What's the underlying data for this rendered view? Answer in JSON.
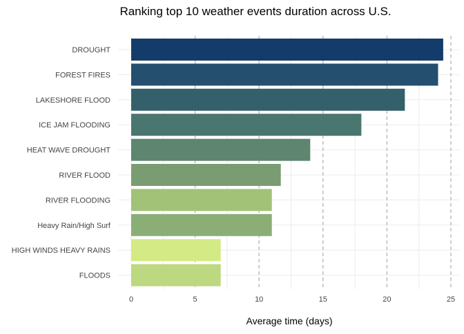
{
  "chart_data": {
    "type": "bar",
    "orientation": "horizontal",
    "title": "Ranking top 10 weather events duration across U.S.",
    "xlabel": "Average time (days)",
    "ylabel": "",
    "categories": [
      "DROUGHT",
      "FOREST FIRES",
      "LAKESHORE FLOOD",
      "ICE JAM FLOODING",
      "HEAT WAVE DROUGHT",
      "RIVER FLOOD",
      "RIVER FLOODING",
      "Heavy Rain/High Surf",
      "HIGH WINDS HEAVY RAINS",
      "FLOODS"
    ],
    "values": [
      24.4,
      24.0,
      21.4,
      18.0,
      14.0,
      11.7,
      11.0,
      11.0,
      7.0,
      7.0
    ],
    "bar_colors": [
      "#143c6a",
      "#254f6f",
      "#34606b",
      "#4a7670",
      "#5d8570",
      "#7a9c73",
      "#a2c278",
      "#8bae77",
      "#d4ea85",
      "#bcd880"
    ],
    "xlim": [
      0,
      25
    ],
    "x_ticks": [
      "0",
      "5",
      "10",
      "15",
      "20",
      "25"
    ],
    "x_tick_values": [
      0,
      5,
      10,
      15,
      20,
      25
    ],
    "grid": true,
    "major_grid_style": "dashed",
    "legend": "none"
  },
  "colors": {
    "background": "#ffffff",
    "grid_minor": "#ebebeb",
    "grid_major": "#b3b3b3",
    "text": "#444444"
  }
}
